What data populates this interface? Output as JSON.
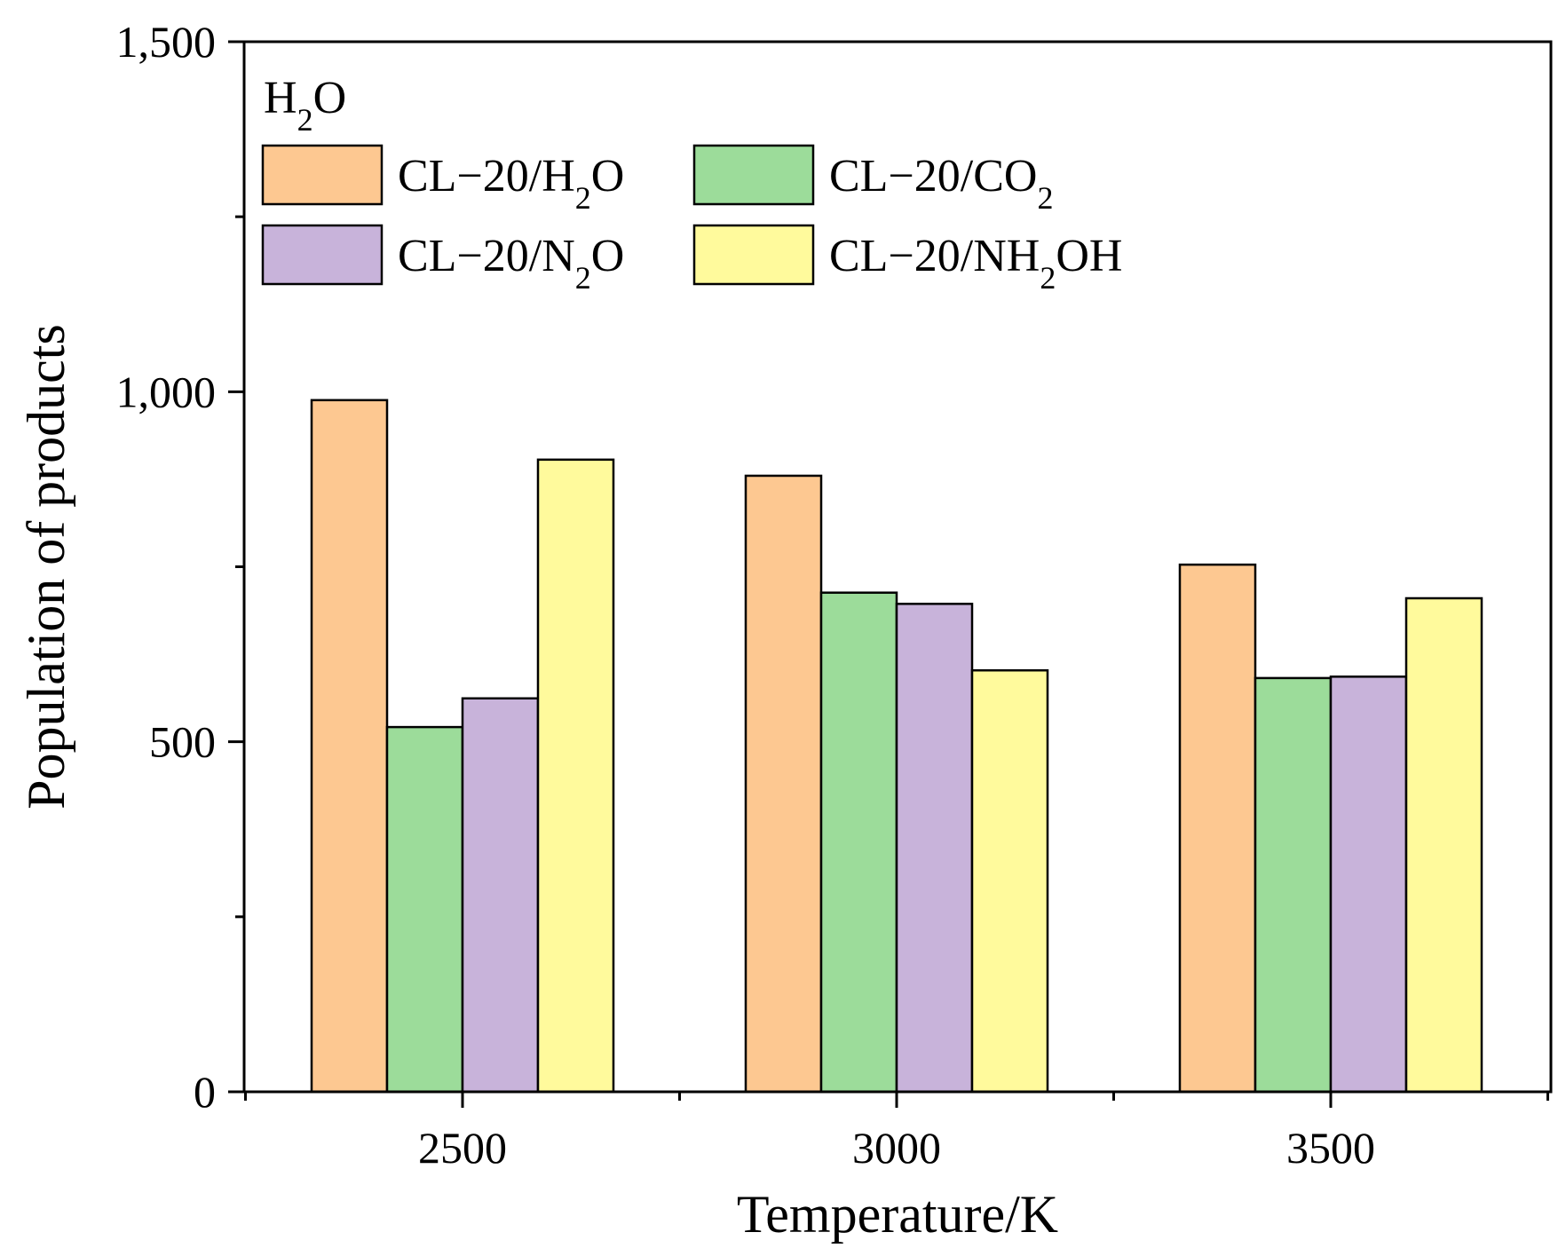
{
  "chart_data": {
    "type": "bar",
    "title": "",
    "xlabel": "Temperature/K",
    "ylabel": "Population of products",
    "ylim": [
      0,
      1500
    ],
    "yticks": [
      0,
      500,
      1000,
      1500
    ],
    "ytick_labels": [
      "0",
      "500",
      "1,000",
      "1,500"
    ],
    "categories": [
      "2500",
      "3000",
      "3500"
    ],
    "legend_title": {
      "main": "H",
      "sub": "2",
      "tail": "O"
    },
    "legend_placement": "top-left",
    "grid": false,
    "series": [
      {
        "name": "CL−20/H2O",
        "label_parts": {
          "main": "CL−20/H",
          "sub": "2",
          "tail": "O"
        },
        "color": "#FDC891",
        "values": [
          988,
          880,
          753
        ]
      },
      {
        "name": "CL−20/CO2",
        "label_parts": {
          "main": "CL−20/CO",
          "sub": "2",
          "tail": ""
        },
        "color": "#9CDC9A",
        "values": [
          521,
          713,
          591
        ]
      },
      {
        "name": "CL−20/N2O",
        "label_parts": {
          "main": "CL−20/N",
          "sub": "2",
          "tail": "O"
        },
        "color": "#C8B3DA",
        "values": [
          562,
          697,
          593
        ]
      },
      {
        "name": "CL−20/NH2OH",
        "label_parts": {
          "main": "CL−20/NH",
          "sub": "2",
          "tail": "OH"
        },
        "color": "#FFFA9C",
        "values": [
          903,
          602,
          705
        ]
      }
    ]
  }
}
